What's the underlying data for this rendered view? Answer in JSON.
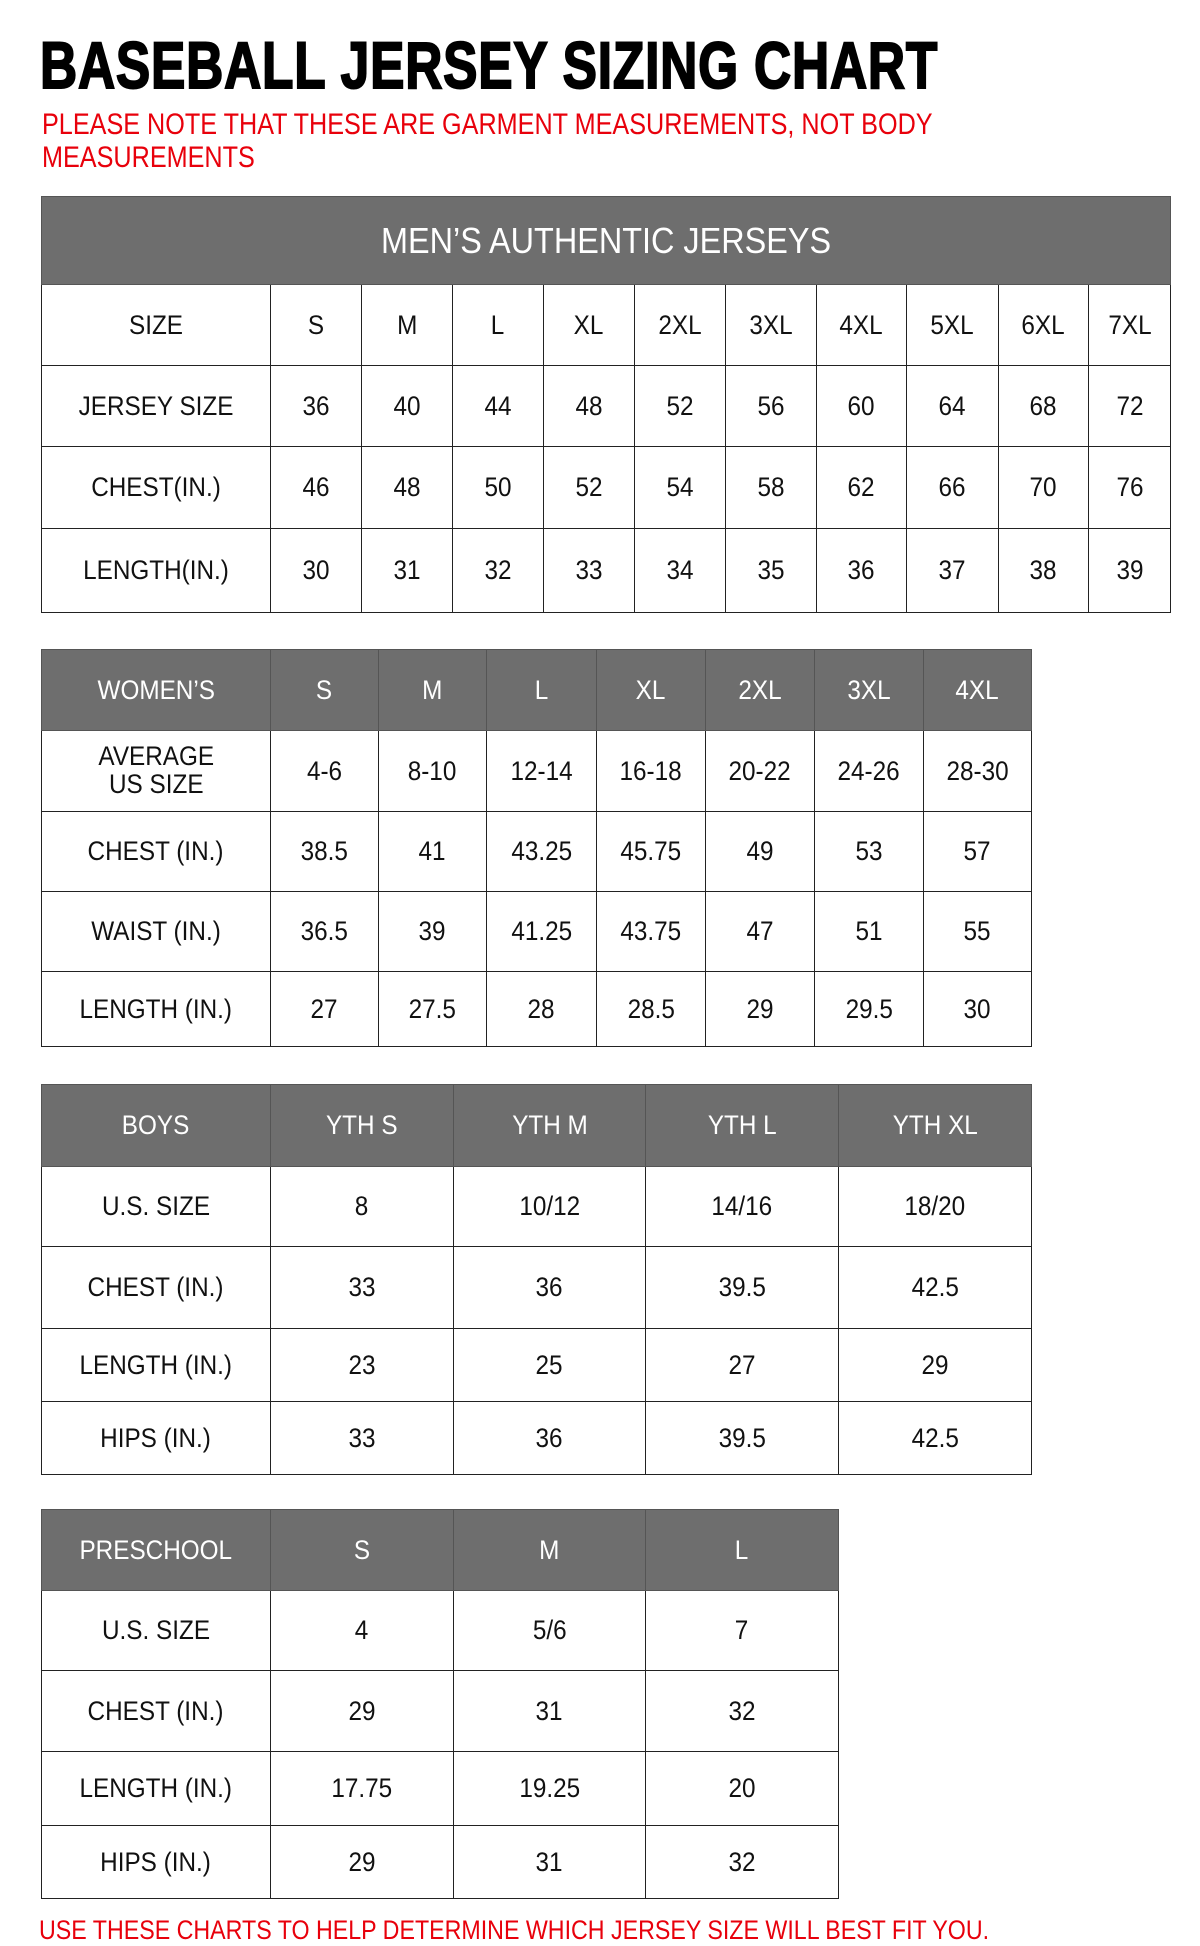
{
  "title": "BASEBALL JERSEY SIZING CHART",
  "note": "PLEASE NOTE THAT THESE ARE GARMENT MEASUREMENTS, NOT BODY MEASUREMENTS",
  "footer": "USE THESE CHARTS TO HELP DETERMINE WHICH JERSEY SIZE WILL BEST FIT YOU.",
  "colors": {
    "header_gray": "#6e6e6e",
    "note_red": "#e8000b"
  },
  "tables": [
    {
      "banner": "MEN’S AUTHENTIC JERSEYS",
      "header": [
        "SIZE",
        "S",
        "M",
        "L",
        "XL",
        "2XL",
        "3XL",
        "4XL",
        "5XL",
        "6XL",
        "7XL"
      ],
      "header_style": "plain",
      "rows": [
        [
          "JERSEY SIZE",
          "36",
          "40",
          "44",
          "48",
          "52",
          "56",
          "60",
          "64",
          "68",
          "72"
        ],
        [
          "CHEST(IN.)",
          "46",
          "48",
          "50",
          "52",
          "54",
          "58",
          "62",
          "66",
          "70",
          "76"
        ],
        [
          "LENGTH(IN.)",
          "30",
          "31",
          "32",
          "33",
          "34",
          "35",
          "36",
          "37",
          "38",
          "39"
        ]
      ]
    },
    {
      "header": [
        "WOMEN’S",
        "S",
        "M",
        "L",
        "XL",
        "2XL",
        "3XL",
        "4XL"
      ],
      "header_style": "gray",
      "rows": [
        [
          "AVERAGE\nUS SIZE",
          "4-6",
          "8-10",
          "12-14",
          "16-18",
          "20-22",
          "24-26",
          "28-30"
        ],
        [
          "CHEST (IN.)",
          "38.5",
          "41",
          "43.25",
          "45.75",
          "49",
          "53",
          "57"
        ],
        [
          "WAIST (IN.)",
          "36.5",
          "39",
          "41.25",
          "43.75",
          "47",
          "51",
          "55"
        ],
        [
          "LENGTH (IN.)",
          "27",
          "27.5",
          "28",
          "28.5",
          "29",
          "29.5",
          "30"
        ]
      ]
    },
    {
      "header": [
        "BOYS",
        "YTH S",
        "YTH M",
        "YTH L",
        "YTH XL"
      ],
      "header_style": "gray",
      "rows": [
        [
          "U.S. SIZE",
          "8",
          "10/12",
          "14/16",
          "18/20"
        ],
        [
          "CHEST (IN.)",
          "33",
          "36",
          "39.5",
          "42.5"
        ],
        [
          "LENGTH (IN.)",
          "23",
          "25",
          "27",
          "29"
        ],
        [
          "HIPS (IN.)",
          "33",
          "36",
          "39.5",
          "42.5"
        ]
      ]
    },
    {
      "header": [
        "PRESCHOOL",
        "S",
        "M",
        "L"
      ],
      "header_style": "gray",
      "rows": [
        [
          "U.S. SIZE",
          "4",
          "5/6",
          "7"
        ],
        [
          "CHEST (IN.)",
          "29",
          "31",
          "32"
        ],
        [
          "LENGTH (IN.)",
          "17.75",
          "19.25",
          "20"
        ],
        [
          "HIPS (IN.)",
          "29",
          "31",
          "32"
        ]
      ]
    }
  ]
}
